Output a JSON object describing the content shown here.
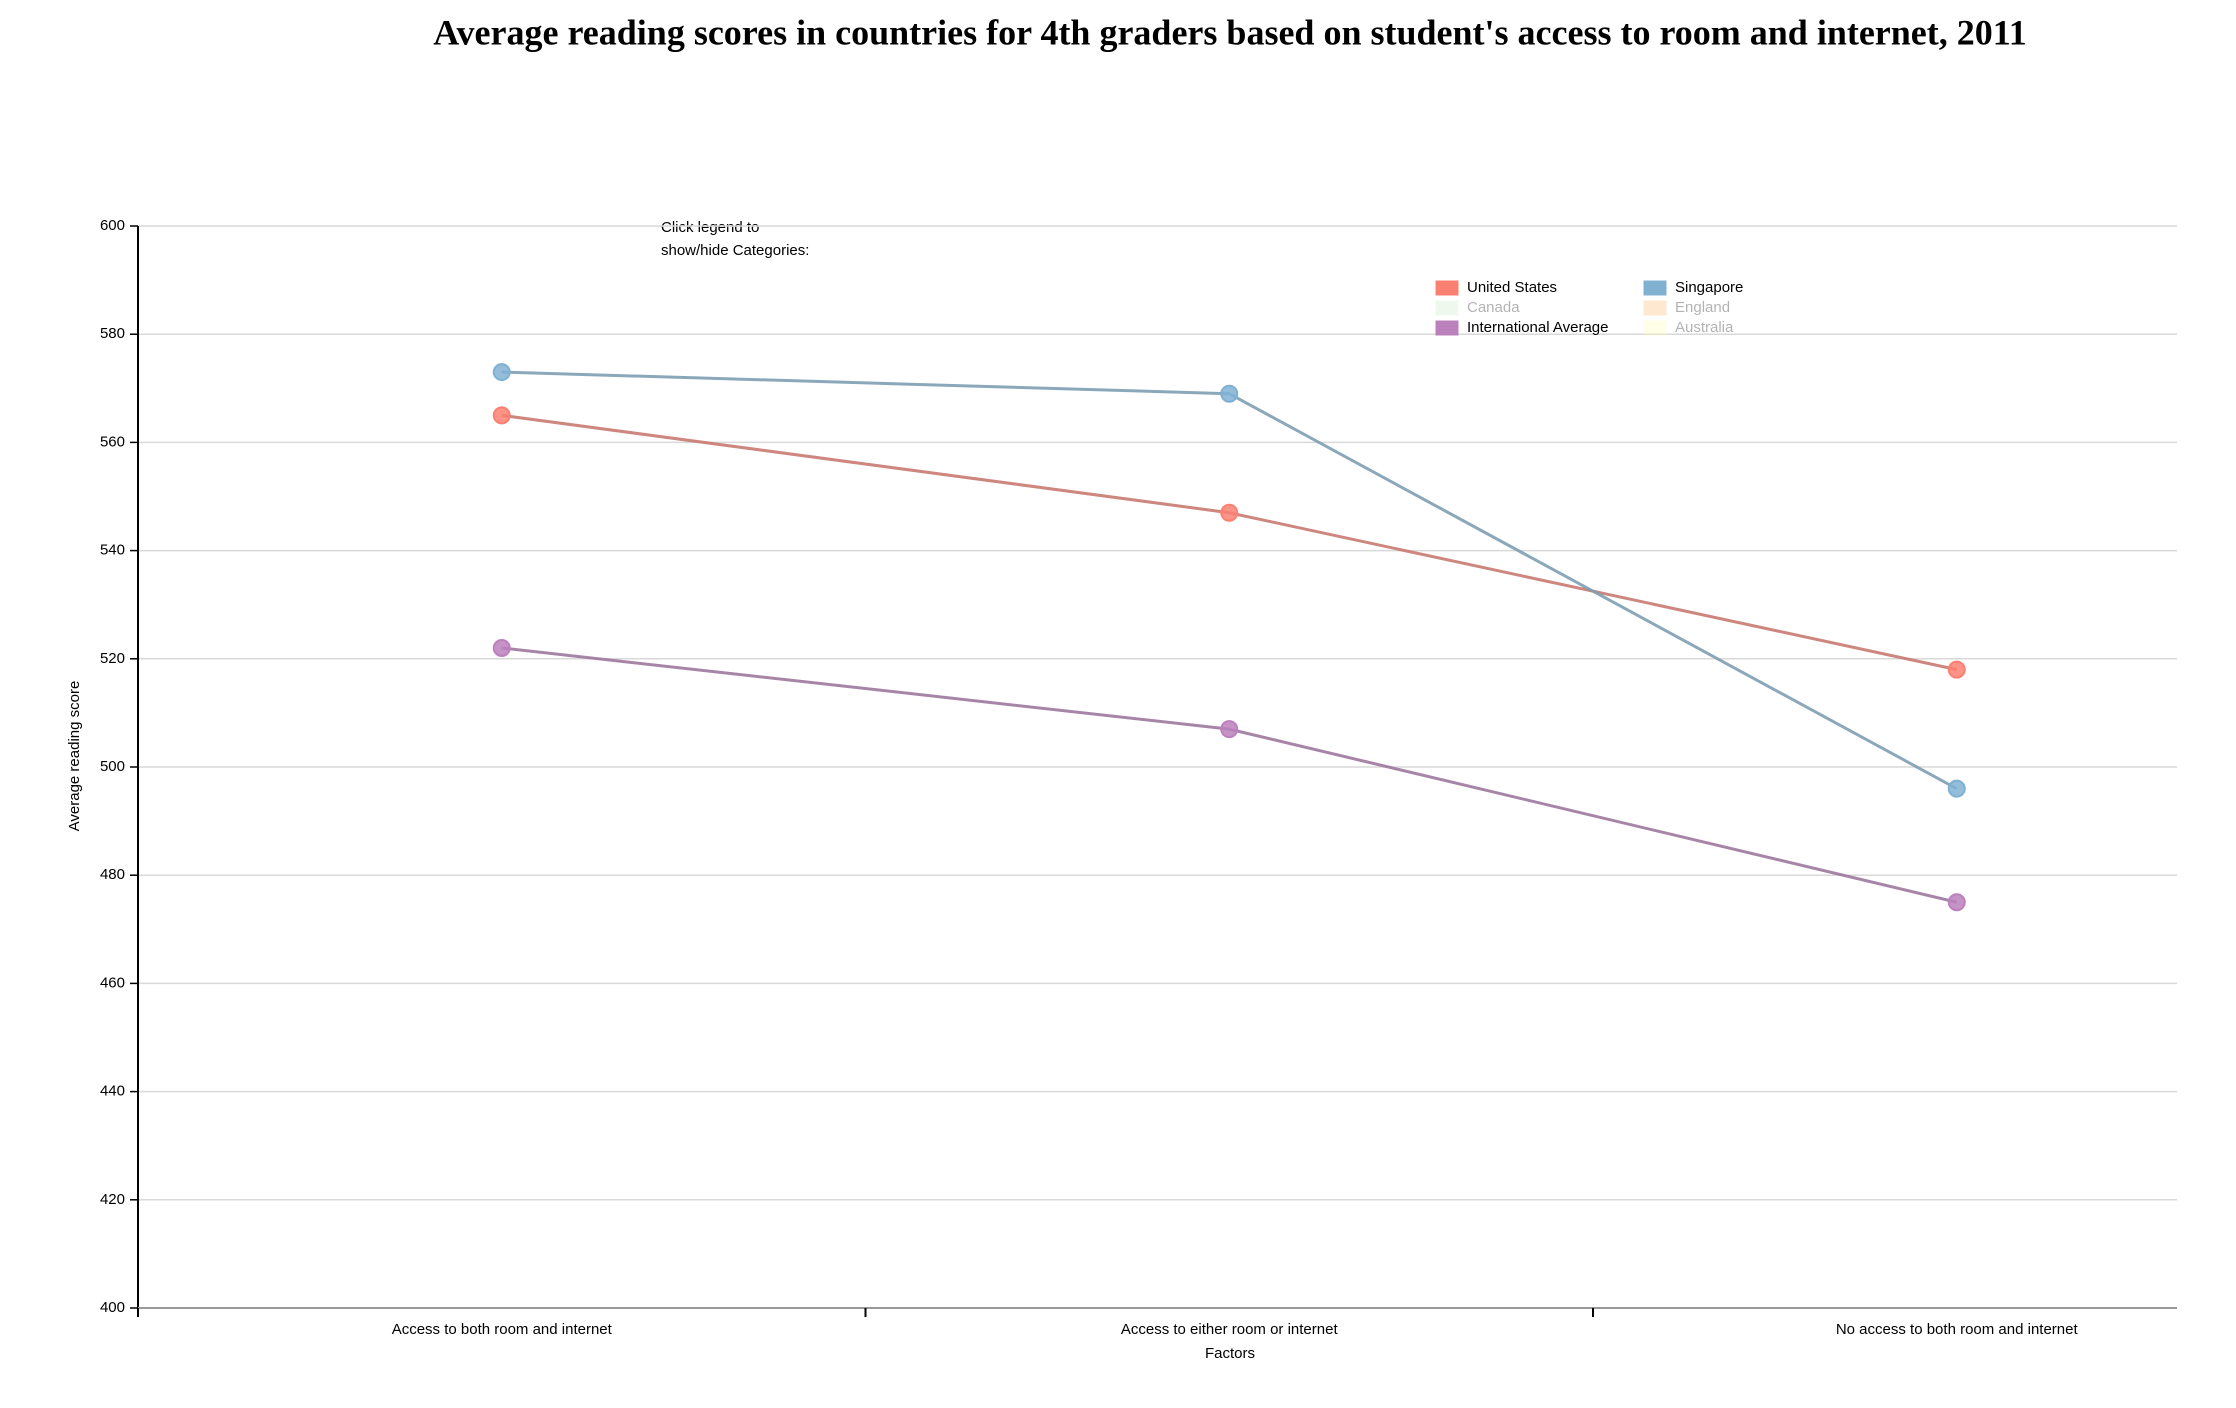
{
  "chart_data": {
    "type": "line",
    "title": "Average reading scores in countries for 4th graders based on student's access to room and internet, 2011",
    "legend_hint": [
      "Click legend to",
      "show/hide Categories:"
    ],
    "x_label": "Factors",
    "y_label": "Average reading score",
    "categories": [
      "Access to both room and internet",
      "Access to either room or internet",
      "No access to both room and internet"
    ],
    "ylim": [
      400,
      600
    ],
    "yticks": [
      400,
      420,
      440,
      460,
      480,
      500,
      520,
      540,
      560,
      580,
      600
    ],
    "grid": true,
    "series": [
      {
        "name": "United States",
        "color": "#fb8072",
        "visible": true,
        "values": [
          565,
          547,
          518
        ]
      },
      {
        "name": "Singapore",
        "color": "#80b1d3",
        "visible": true,
        "values": [
          573,
          569,
          496
        ]
      },
      {
        "name": "Canada",
        "color": "#ccebc5",
        "visible": false
      },
      {
        "name": "England",
        "color": "#fdb462",
        "visible": false
      },
      {
        "name": "International Average",
        "color": "#bc80bd",
        "visible": true,
        "values": [
          522,
          507,
          475
        ]
      },
      {
        "name": "Australia",
        "color": "#ffffb3",
        "visible": false
      }
    ]
  }
}
